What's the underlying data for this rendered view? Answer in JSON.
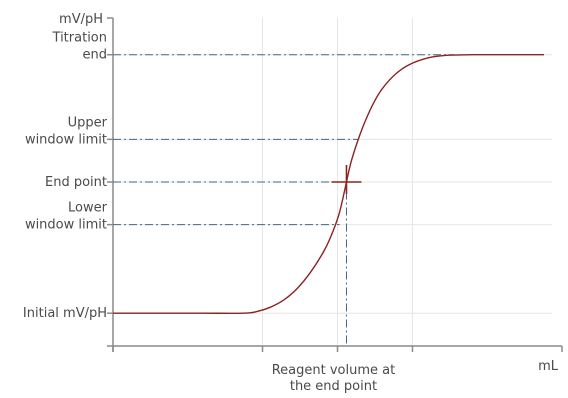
{
  "chart_data": {
    "type": "line",
    "title": "",
    "ylabel": "mV/pH",
    "xlabel": "mL",
    "x_marker_label": [
      "Reagent volume at",
      "the end point"
    ],
    "y_markers": [
      {
        "key": "titration_end",
        "lines": [
          "Titration",
          "end"
        ],
        "value": 0.888
      },
      {
        "key": "upper_window",
        "lines": [
          "Upper",
          "window limit"
        ],
        "value": 0.63
      },
      {
        "key": "end_point",
        "lines": [
          "End point"
        ],
        "value": 0.5
      },
      {
        "key": "lower_window",
        "lines": [
          "Lower",
          "window limit"
        ],
        "value": 0.37
      },
      {
        "key": "initial",
        "lines": [
          "Initial mV/pH"
        ],
        "value": 0.1
      }
    ],
    "endpoint_x": 0.52,
    "series": [
      {
        "color": "#8b2323",
        "x": [
          0,
          0.1,
          0.2,
          0.29,
          0.32,
          0.35,
          0.38,
          0.41,
          0.44,
          0.47,
          0.49,
          0.505,
          0.52,
          0.53,
          0.545,
          0.56,
          0.58,
          0.6,
          0.63,
          0.66,
          0.7,
          0.74,
          0.8,
          0.86,
          0.92,
          0.96
        ],
        "y": [
          0.1,
          0.1,
          0.1,
          0.1,
          0.105,
          0.118,
          0.14,
          0.175,
          0.225,
          0.29,
          0.35,
          0.41,
          0.5,
          0.56,
          0.625,
          0.68,
          0.74,
          0.785,
          0.83,
          0.858,
          0.878,
          0.886,
          0.888,
          0.888,
          0.888,
          0.888
        ]
      }
    ],
    "xlim": [
      0,
      1
    ],
    "ylim": [
      0,
      1
    ],
    "x_ticks": [
      0,
      0.333,
      0.5,
      0.667,
      1
    ],
    "y_ticks": [
      0.1,
      0.37,
      0.5,
      0.63,
      0.888
    ],
    "grid": true,
    "colors": {
      "curve": "#8b2323",
      "guide": "#3c6a8c",
      "axis": "#8a8a8a",
      "grid": "#e6e6e6"
    }
  }
}
